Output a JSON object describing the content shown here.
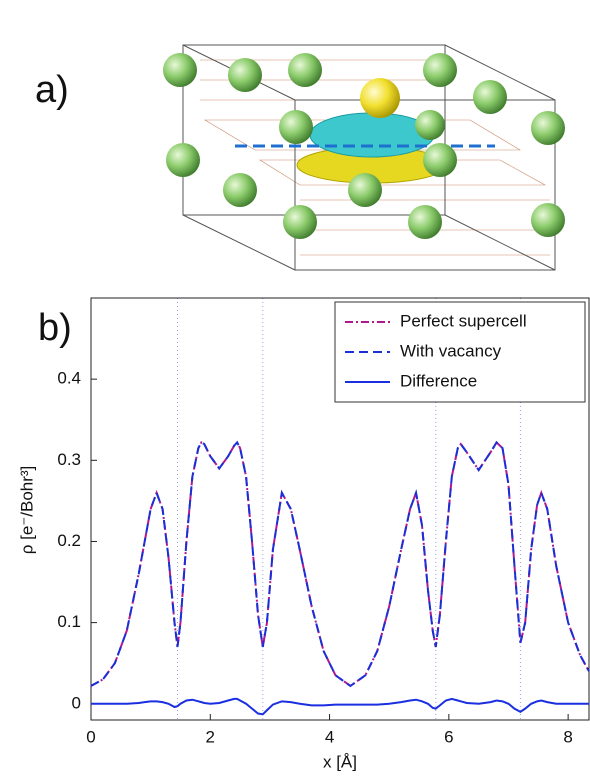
{
  "panel_labels": [
    "a)",
    "b)"
  ],
  "chart_data": {
    "type": "line",
    "xlabel": "x [Å]",
    "ylabel": "ρ [e⁻/Bohr³]",
    "x": [
      0,
      0.2,
      0.4,
      0.6,
      0.8,
      0.9,
      1.0,
      1.1,
      1.2,
      1.3,
      1.4,
      1.45,
      1.5,
      1.6,
      1.7,
      1.8,
      1.85,
      1.9,
      2.0,
      2.15,
      2.3,
      2.4,
      2.45,
      2.5,
      2.6,
      2.7,
      2.8,
      2.88,
      2.95,
      3.05,
      3.2,
      3.35,
      3.5,
      3.7,
      3.9,
      4.1,
      4.35,
      4.6,
      4.8,
      5.0,
      5.2,
      5.35,
      5.45,
      5.55,
      5.65,
      5.73,
      5.78,
      5.85,
      5.95,
      6.05,
      6.15,
      6.2,
      6.3,
      6.5,
      6.7,
      6.8,
      6.9,
      7.0,
      7.1,
      7.2,
      7.28,
      7.38,
      7.48,
      7.55,
      7.65,
      7.8,
      8.0,
      8.2,
      8.35
    ],
    "series": [
      {
        "name": "Perfect supercell",
        "color": "#b0188f",
        "dash": "dashdot",
        "values": [
          0.022,
          0.03,
          0.05,
          0.09,
          0.16,
          0.2,
          0.24,
          0.26,
          0.24,
          0.18,
          0.1,
          0.07,
          0.1,
          0.2,
          0.28,
          0.315,
          0.322,
          0.32,
          0.305,
          0.29,
          0.305,
          0.318,
          0.322,
          0.315,
          0.28,
          0.2,
          0.11,
          0.07,
          0.1,
          0.19,
          0.26,
          0.24,
          0.19,
          0.12,
          0.065,
          0.035,
          0.022,
          0.035,
          0.065,
          0.12,
          0.19,
          0.24,
          0.26,
          0.22,
          0.14,
          0.09,
          0.07,
          0.11,
          0.2,
          0.28,
          0.315,
          0.32,
          0.31,
          0.288,
          0.31,
          0.322,
          0.315,
          0.27,
          0.17,
          0.075,
          0.1,
          0.19,
          0.245,
          0.26,
          0.24,
          0.17,
          0.1,
          0.06,
          0.04
        ]
      },
      {
        "name": "With vacancy",
        "color": "#1a2fd6",
        "dash": "dashed",
        "values": [
          0.022,
          0.03,
          0.05,
          0.09,
          0.16,
          0.2,
          0.24,
          0.26,
          0.24,
          0.18,
          0.1,
          0.07,
          0.1,
          0.2,
          0.28,
          0.315,
          0.322,
          0.32,
          0.305,
          0.29,
          0.305,
          0.318,
          0.322,
          0.315,
          0.28,
          0.2,
          0.11,
          0.07,
          0.1,
          0.19,
          0.26,
          0.24,
          0.19,
          0.12,
          0.065,
          0.035,
          0.022,
          0.035,
          0.065,
          0.12,
          0.19,
          0.24,
          0.26,
          0.22,
          0.14,
          0.09,
          0.07,
          0.11,
          0.2,
          0.28,
          0.315,
          0.32,
          0.31,
          0.288,
          0.31,
          0.322,
          0.315,
          0.27,
          0.17,
          0.075,
          0.1,
          0.19,
          0.245,
          0.26,
          0.24,
          0.17,
          0.1,
          0.06,
          0.04
        ]
      },
      {
        "name": "Difference",
        "color": "#1a2fe0",
        "dash": "solid",
        "values": [
          0,
          0,
          0,
          0,
          0.001,
          0.002,
          0.003,
          0.003,
          0.002,
          0,
          -0.004,
          -0.003,
          0,
          0.004,
          0.005,
          0.003,
          0.002,
          0.001,
          0,
          0.001,
          0.004,
          0.006,
          0.006,
          0.004,
          0,
          -0.006,
          -0.012,
          -0.013,
          -0.008,
          -0.001,
          0.003,
          0.002,
          0,
          -0.002,
          -0.002,
          -0.001,
          -0.001,
          -0.001,
          -0.001,
          0,
          0.002,
          0.004,
          0.005,
          0.003,
          0,
          -0.005,
          -0.006,
          -0.002,
          0.004,
          0.006,
          0.004,
          0.003,
          0.001,
          0,
          0.002,
          0.004,
          0.003,
          0,
          -0.006,
          -0.01,
          -0.006,
          0,
          0.003,
          0.004,
          0.002,
          0,
          0,
          0,
          0
        ]
      }
    ],
    "vlines": [
      1.45,
      2.88,
      5.78,
      7.2
    ],
    "xlim": [
      0,
      8.35
    ],
    "ylim": [
      -0.02,
      0.5
    ],
    "xticks": [
      0,
      2,
      4,
      6,
      8
    ],
    "yticks": [
      0,
      0.1,
      0.2,
      0.3,
      0.4
    ],
    "legend": "upper right"
  }
}
